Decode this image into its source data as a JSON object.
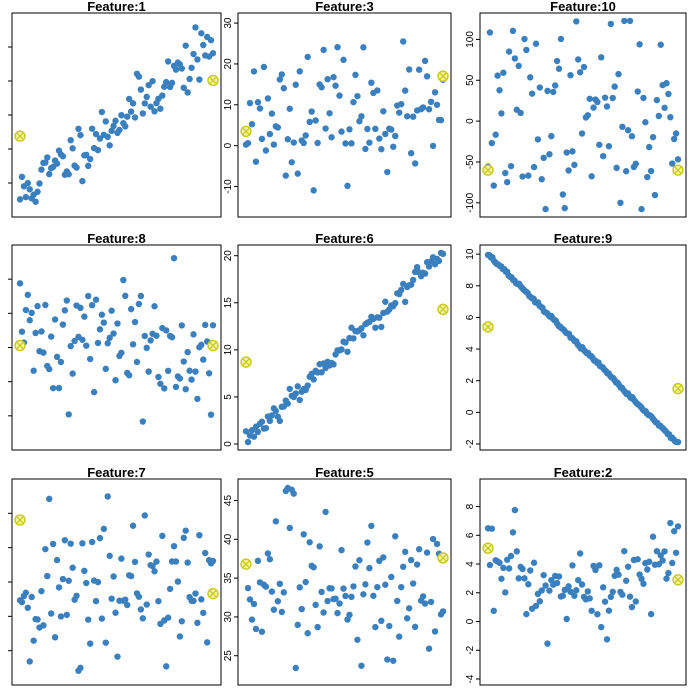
{
  "colors": {
    "point": "#3a7fbe",
    "highlight_fill": "#f2f2a0",
    "highlight_stroke": "#c9c918",
    "axis": "#000000"
  },
  "chart_data": [
    {
      "type": "scatter",
      "title": "Feature:1",
      "ylim": [
        0,
        1
      ],
      "yticks": [],
      "ytick_labels": [],
      "highlights": [
        {
          "x": 0,
          "y": 0.39
        },
        {
          "x": 1,
          "y": 0.68
        }
      ],
      "seed": 11,
      "pattern": "linear_up",
      "n": 100,
      "y0": 0.08,
      "y1": 0.86,
      "noise": 0.07
    },
    {
      "type": "scatter",
      "title": "Feature:3",
      "ylim": [
        -16,
        31
      ],
      "yticks": [
        -10,
        0,
        10,
        20,
        30
      ],
      "ytick_labels": [
        "-10",
        "0",
        "10",
        "20",
        "30"
      ],
      "highlights": [
        {
          "x": 0,
          "y": 3.5
        },
        {
          "x": 1,
          "y": 17
        }
      ],
      "seed": 23,
      "pattern": "flat",
      "n": 100,
      "mean": 8,
      "sd": 7
    },
    {
      "type": "scatter",
      "title": "Feature:10",
      "ylim": [
        -110,
        125
      ],
      "yticks": [
        -100,
        -50,
        0,
        50,
        100
      ],
      "ytick_labels": [
        "-100",
        "-50",
        "0",
        "50",
        "100"
      ],
      "highlights": [
        {
          "x": 0,
          "y": -60
        },
        {
          "x": 1,
          "y": -60
        }
      ],
      "seed": 37,
      "pattern": "flat",
      "n": 100,
      "mean": 5,
      "sd": 55
    },
    {
      "type": "scatter",
      "title": "Feature:8",
      "ylim": [
        0,
        1
      ],
      "yticks": [],
      "ytick_labels": [],
      "highlights": [
        {
          "x": 0,
          "y": 0.51
        },
        {
          "x": 1,
          "y": 0.51
        }
      ],
      "seed": 41,
      "pattern": "flat",
      "n": 100,
      "mean": 0.55,
      "sd": 0.17
    },
    {
      "type": "scatter",
      "title": "Feature:6",
      "ylim": [
        0,
        20.5
      ],
      "yticks": [
        0,
        5,
        10,
        15,
        20
      ],
      "ytick_labels": [
        "0",
        "5",
        "10",
        "15",
        "20"
      ],
      "highlights": [
        {
          "x": 0,
          "y": 8.7
        },
        {
          "x": 1,
          "y": 14.3
        }
      ],
      "seed": 53,
      "pattern": "linear_up",
      "n": 100,
      "y0": 0.5,
      "y1": 20.2,
      "noise": 0.6
    },
    {
      "type": "scatter",
      "title": "Feature:9",
      "ylim": [
        -2,
        10.2
      ],
      "yticks": [
        -2,
        0,
        2,
        4,
        6,
        8,
        10
      ],
      "ytick_labels": [
        "-2",
        "0",
        "2",
        "4",
        "6",
        "8",
        "10"
      ],
      "highlights": [
        {
          "x": 0,
          "y": 5.4
        },
        {
          "x": 1,
          "y": 1.5
        }
      ],
      "seed": 67,
      "pattern": "linear_down",
      "n": 130,
      "y0": 10,
      "y1": -2,
      "noise": 0.05
    },
    {
      "type": "scatter",
      "title": "Feature:7",
      "ylim": [
        0,
        1
      ],
      "yticks": [],
      "ytick_labels": [],
      "highlights": [
        {
          "x": 0,
          "y": 0.82
        },
        {
          "x": 1,
          "y": 0.44
        }
      ],
      "seed": 71,
      "pattern": "flat",
      "n": 100,
      "mean": 0.47,
      "sd": 0.2
    },
    {
      "type": "scatter",
      "title": "Feature:5",
      "ylim": [
        22,
        47
      ],
      "yticks": [
        25,
        30,
        35,
        40,
        45
      ],
      "ytick_labels": [
        "25",
        "30",
        "35",
        "40",
        "45"
      ],
      "highlights": [
        {
          "x": 0,
          "y": 36.8
        },
        {
          "x": 1,
          "y": 37.6
        }
      ],
      "seed": 83,
      "pattern": "flat",
      "n": 100,
      "mean": 34,
      "sd": 5
    },
    {
      "type": "scatter",
      "title": "Feature:2",
      "ylim": [
        -4,
        9.5
      ],
      "yticks": [
        -4,
        -2,
        0,
        2,
        4,
        6,
        8
      ],
      "ytick_labels": [
        "-4",
        "-2",
        "0",
        "2",
        "4",
        "6",
        "8"
      ],
      "highlights": [
        {
          "x": 0,
          "y": 5.1
        },
        {
          "x": 1,
          "y": 2.9
        }
      ],
      "seed": 97,
      "pattern": "u_shape",
      "n": 100,
      "mean": 2.8,
      "sd": 2.3
    }
  ]
}
